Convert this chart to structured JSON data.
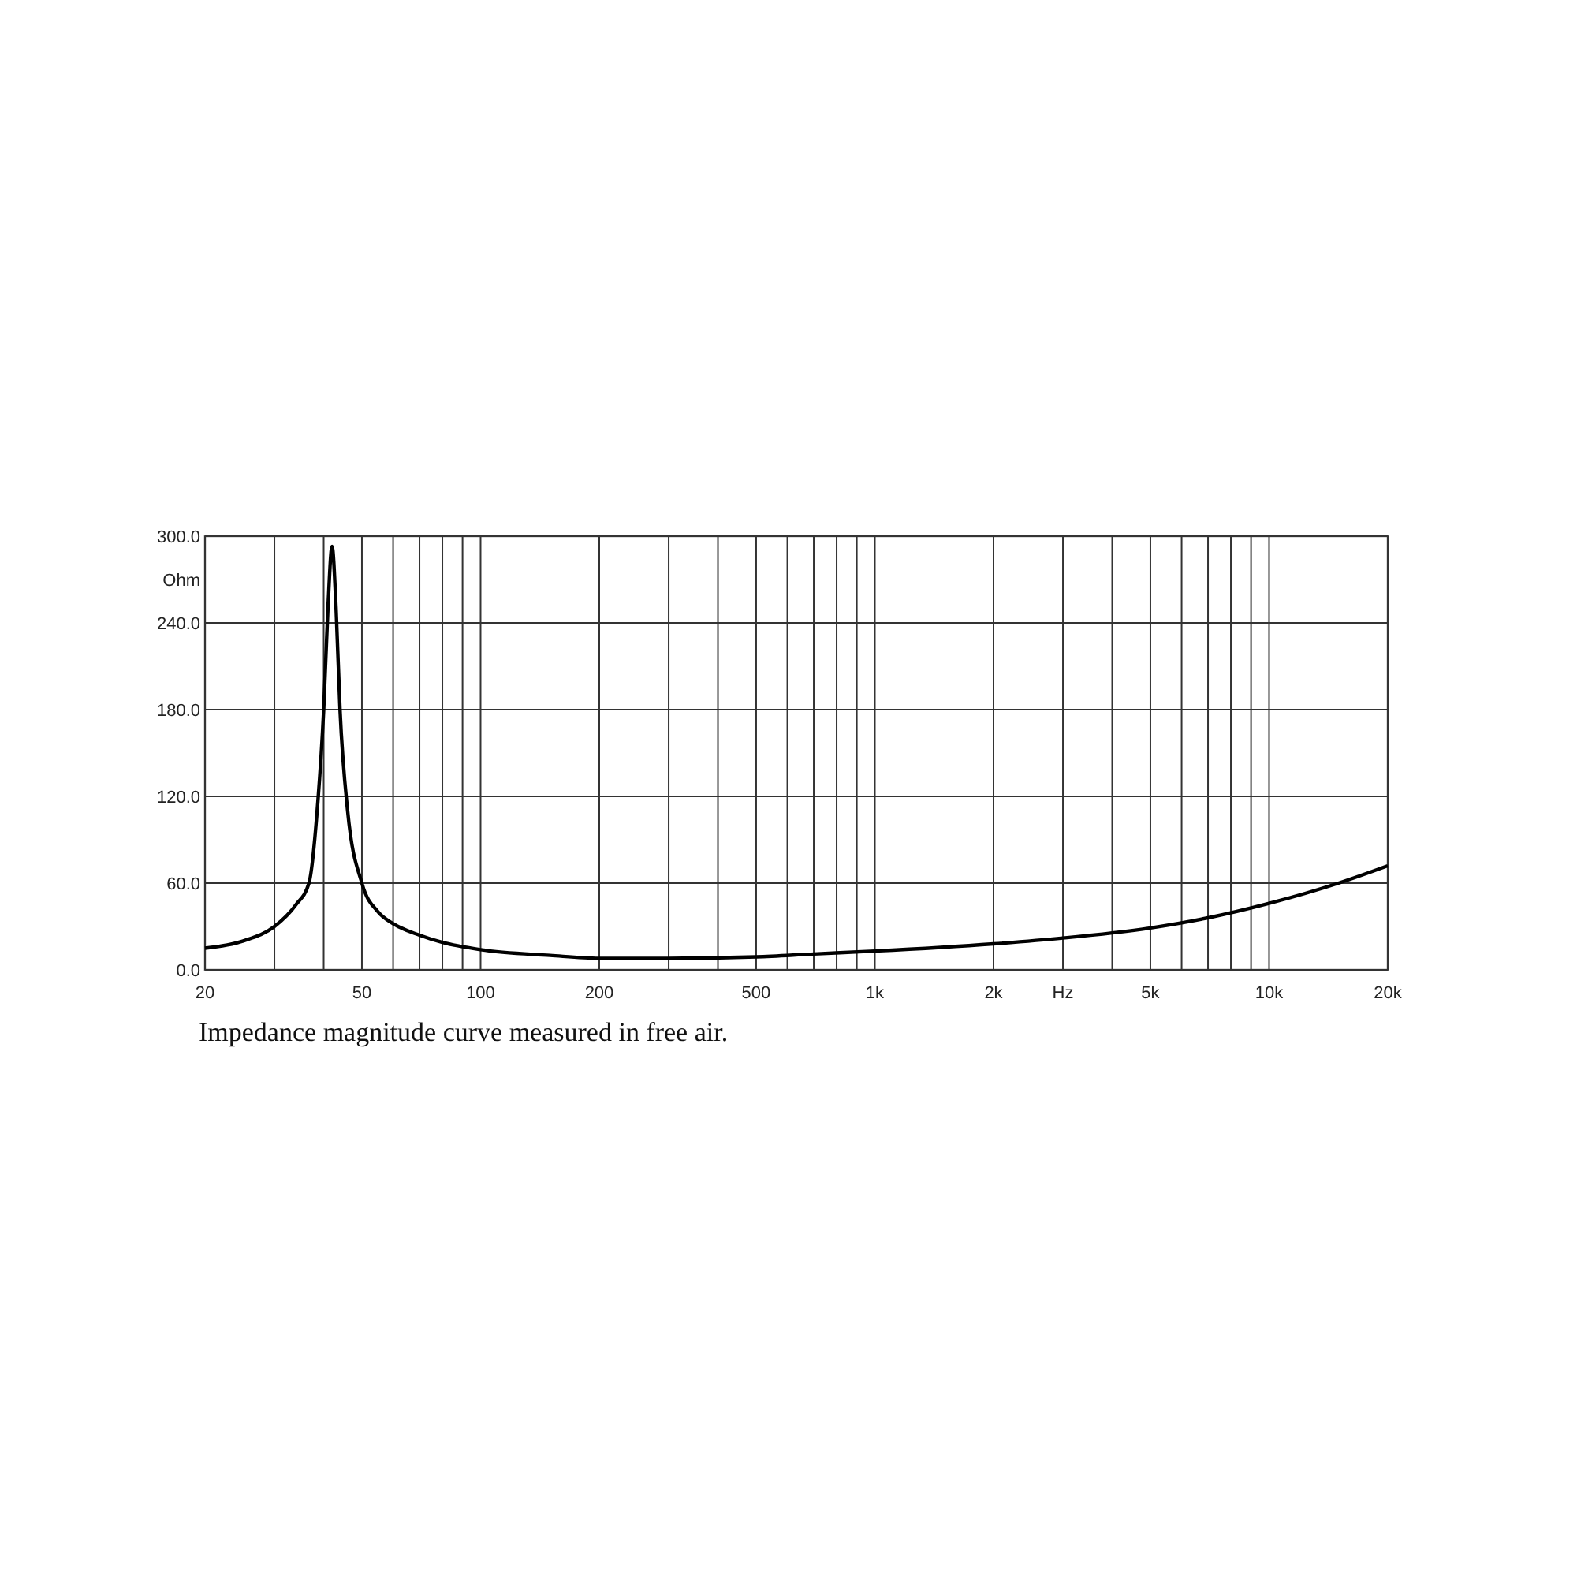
{
  "chart_data": {
    "type": "line",
    "ylabel": "Ohm",
    "log": "x",
    "x": [
      20,
      25,
      30,
      34,
      36.7,
      38.5,
      40,
      41,
      42,
      43,
      44,
      46,
      50,
      55,
      60,
      70,
      80,
      100,
      150,
      200,
      300,
      500,
      700,
      1000,
      2000,
      3000,
      5000,
      7000,
      10000,
      15000,
      20000
    ],
    "series": [
      {
        "color": "#000000",
        "values": [
          15,
          20,
          30,
          45,
          60,
          110,
          180,
          250,
          293,
          250,
          180,
          110,
          60,
          40,
          32,
          24,
          19,
          14,
          10,
          8,
          8,
          9,
          11,
          13,
          18,
          22,
          29,
          36,
          46,
          60,
          72
        ]
      }
    ],
    "xlim": [
      20,
      20000
    ],
    "ylim": [
      0,
      300
    ],
    "xticks": [
      20,
      {
        "value": 30,
        "label": null
      },
      {
        "value": 40,
        "label": null
      },
      50,
      {
        "value": 60,
        "label": null
      },
      {
        "value": 70,
        "label": null
      },
      {
        "value": 80,
        "label": null
      },
      {
        "value": 90,
        "label": null
      },
      100,
      200,
      {
        "value": 300,
        "label": null
      },
      {
        "value": 400,
        "label": null
      },
      500,
      {
        "value": 600,
        "label": null
      },
      {
        "value": 700,
        "label": null
      },
      {
        "value": 800,
        "label": null
      },
      {
        "value": 900,
        "label": null
      },
      {
        "value": 1000,
        "label": "1k"
      },
      {
        "value": 2000,
        "label": "2k"
      },
      {
        "value": 3000,
        "label": "Hz"
      },
      {
        "value": 4000,
        "label": null
      },
      {
        "value": 5000,
        "label": "5k"
      },
      {
        "value": 6000,
        "label": null
      },
      {
        "value": 7000,
        "label": null
      },
      {
        "value": 8000,
        "label": null
      },
      {
        "value": 9000,
        "label": null
      },
      {
        "value": 10000,
        "label": "10k"
      },
      {
        "value": 20000,
        "label": "20k"
      }
    ],
    "yticks": [
      {
        "value": 0,
        "label": "0.0"
      },
      {
        "value": 60,
        "label": "60.0"
      },
      {
        "value": 120,
        "label": "120.0"
      },
      {
        "value": 180,
        "label": "180.0"
      },
      {
        "value": 240,
        "label": "240.0"
      },
      {
        "value": 300,
        "label": "300.0"
      }
    ],
    "grid": true,
    "marker": "none",
    "line_style": "solid",
    "annotations": [
      "Impedance magnitude curve measured in free air."
    ]
  }
}
